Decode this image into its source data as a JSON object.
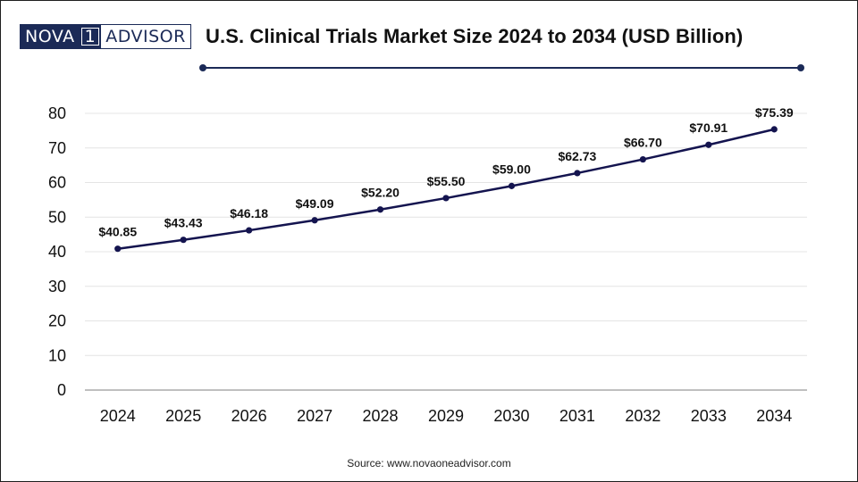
{
  "brand": {
    "logo_left": "NOVA",
    "logo_mid": "1",
    "logo_right": "ADVISOR"
  },
  "colors": {
    "line": "#14144f",
    "brand": "#1b2a57",
    "grid": "#e4e4e4",
    "axis": "#999999",
    "text": "#111111"
  },
  "chart_data": {
    "type": "line",
    "title": "U.S. Clinical Trials Market Size 2024 to 2034 (USD Billion)",
    "xlabel": "",
    "ylabel": "",
    "categories": [
      "2024",
      "2025",
      "2026",
      "2027",
      "2028",
      "2029",
      "2030",
      "2031",
      "2032",
      "2033",
      "2034"
    ],
    "series": [
      {
        "name": "U.S. Clinical Trials Market Size",
        "values": [
          40.85,
          43.43,
          46.18,
          49.09,
          52.2,
          55.5,
          59.0,
          62.73,
          66.7,
          70.91,
          75.39
        ],
        "labels": [
          "$40.85",
          "$43.43",
          "$46.18",
          "$49.09",
          "$52.20",
          "$55.50",
          "$59.00",
          "$62.73",
          "$66.70",
          "$70.91",
          "$75.39"
        ]
      }
    ],
    "yticks": [
      "0",
      "10",
      "20",
      "30",
      "40",
      "50",
      "60",
      "70",
      "80"
    ],
    "ylim": [
      0,
      80
    ],
    "grid": true,
    "legend": "none"
  },
  "source": "Source: www.novaoneadvisor.com"
}
